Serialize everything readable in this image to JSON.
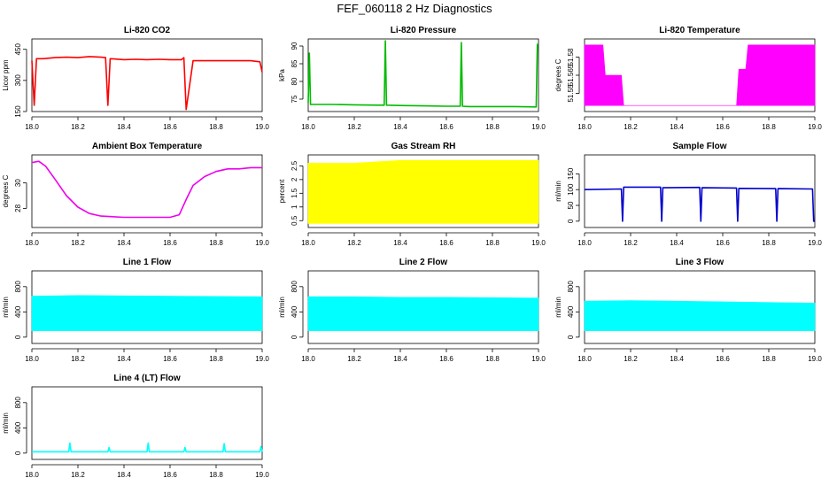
{
  "title": "FEF_060118  2 Hz Diagnostics",
  "chart_data": [
    {
      "type": "line",
      "title": "Li-820 CO2",
      "ylabel": "Licor ppm",
      "color": "#ff0000",
      "xlim": [
        18.0,
        19.0
      ],
      "ylim": [
        150,
        500
      ],
      "xticks": [
        18.0,
        18.2,
        18.4,
        18.6,
        18.8,
        19.0
      ],
      "yticks": [
        150,
        300,
        450
      ],
      "series": [
        {
          "x": [
            18.0,
            18.01,
            18.02,
            18.05,
            18.1,
            18.15,
            18.2,
            18.25,
            18.3,
            18.32,
            18.33,
            18.34,
            18.4,
            18.45,
            18.5,
            18.55,
            18.6,
            18.65,
            18.66,
            18.67,
            18.7,
            18.75,
            18.8,
            18.85,
            18.9,
            18.95,
            18.99,
            19.0
          ],
          "y": [
            395,
            180,
            405,
            405,
            410,
            412,
            410,
            415,
            412,
            410,
            180,
            405,
            400,
            402,
            400,
            402,
            400,
            400,
            410,
            160,
            395,
            395,
            395,
            395,
            395,
            395,
            390,
            340
          ]
        }
      ]
    },
    {
      "type": "line",
      "title": "Li-820 Pressure",
      "ylabel": "kPa",
      "color": "#00bb00",
      "xlim": [
        18.0,
        19.0
      ],
      "ylim": [
        71.5,
        92
      ],
      "xticks": [
        18.0,
        18.2,
        18.4,
        18.6,
        18.8,
        19.0
      ],
      "yticks": [
        75,
        80,
        85,
        90
      ],
      "series": [
        {
          "x": [
            18.0,
            18.005,
            18.01,
            18.1,
            18.2,
            18.3,
            18.33,
            18.335,
            18.34,
            18.4,
            18.5,
            18.6,
            18.66,
            18.665,
            18.67,
            18.7,
            18.8,
            18.9,
            18.99,
            18.995,
            19.0
          ],
          "y": [
            74,
            88,
            73.5,
            73.5,
            73.4,
            73.3,
            73.3,
            91.5,
            73.3,
            73.2,
            73.1,
            73,
            73,
            91,
            73,
            72.9,
            72.9,
            72.9,
            72.8,
            90.5,
            90.5
          ]
        }
      ]
    },
    {
      "type": "area",
      "title": "Li-820 Temperature",
      "ylabel": "degrees C",
      "color": "#ff00ff",
      "xlim": [
        18.0,
        19.0
      ],
      "ylim": [
        51.535,
        51.595
      ],
      "xticks": [
        18.0,
        18.2,
        18.4,
        18.6,
        18.8,
        19.0
      ],
      "yticks": [
        51.55,
        51.565,
        51.58
      ],
      "series": [
        {
          "x": [
            18.0,
            18.08,
            18.09,
            18.16,
            18.17,
            18.66,
            18.67,
            18.7,
            18.71,
            19.0
          ],
          "low": [
            51.54,
            51.54,
            51.54,
            51.54,
            51.54,
            51.54,
            51.54,
            51.54,
            51.54,
            51.54
          ],
          "high": [
            51.59,
            51.59,
            51.565,
            51.565,
            51.54,
            51.54,
            51.57,
            51.57,
            51.59,
            51.59
          ]
        }
      ]
    },
    {
      "type": "line",
      "title": "Ambient Box Temperature",
      "ylabel": "degrees C",
      "color": "#ee00ee",
      "xlim": [
        18.0,
        19.0
      ],
      "ylim": [
        26.5,
        32.2
      ],
      "xticks": [
        18.0,
        18.2,
        18.4,
        18.6,
        18.8,
        19.0
      ],
      "yticks": [
        28,
        30
      ],
      "series": [
        {
          "x": [
            18.0,
            18.03,
            18.06,
            18.1,
            18.15,
            18.2,
            18.25,
            18.3,
            18.4,
            18.5,
            18.6,
            18.64,
            18.67,
            18.7,
            18.75,
            18.8,
            18.85,
            18.9,
            18.95,
            19.0
          ],
          "y": [
            31.6,
            31.7,
            31.3,
            30.3,
            29.0,
            28.1,
            27.6,
            27.4,
            27.3,
            27.3,
            27.3,
            27.5,
            28.7,
            29.8,
            30.5,
            30.9,
            31.1,
            31.1,
            31.2,
            31.2
          ]
        }
      ]
    },
    {
      "type": "area",
      "title": "Gas Stream RH",
      "ylabel": "percent",
      "color": "#ffff00",
      "xlim": [
        18.0,
        19.0
      ],
      "ylim": [
        0.25,
        2.9
      ],
      "xticks": [
        18.0,
        18.2,
        18.4,
        18.6,
        18.8,
        19.0
      ],
      "yticks": [
        0.5,
        1.0,
        1.5,
        2.0,
        2.5
      ],
      "series": [
        {
          "x": [
            18.0,
            18.2,
            18.4,
            18.6,
            18.8,
            19.0
          ],
          "low": [
            0.4,
            0.4,
            0.4,
            0.4,
            0.4,
            0.4
          ],
          "high": [
            2.6,
            2.6,
            2.7,
            2.7,
            2.7,
            2.7
          ]
        }
      ]
    },
    {
      "type": "line",
      "title": "Sample Flow",
      "ylabel": "ml/min",
      "color": "#0000cc",
      "xlim": [
        18.0,
        19.0
      ],
      "ylim": [
        -20,
        210
      ],
      "xticks": [
        18.0,
        18.2,
        18.4,
        18.6,
        18.8,
        19.0
      ],
      "yticks": [
        0,
        50,
        100,
        150
      ],
      "series": [
        {
          "x": [
            18.0,
            18.16,
            18.165,
            18.17,
            18.33,
            18.335,
            18.34,
            18.5,
            18.505,
            18.51,
            18.66,
            18.665,
            18.67,
            18.83,
            18.835,
            18.84,
            18.99,
            18.995,
            19.0
          ],
          "y": [
            100,
            102,
            0,
            108,
            108,
            0,
            106,
            107,
            0,
            106,
            105,
            0,
            104,
            103,
            0,
            103,
            102,
            0,
            0
          ]
        }
      ]
    },
    {
      "type": "area",
      "title": "Line 1 Flow",
      "ylabel": "ml/min",
      "color": "#00ffff",
      "xlim": [
        18.0,
        19.0
      ],
      "ylim": [
        -100,
        1050
      ],
      "xticks": [
        18.0,
        18.2,
        18.4,
        18.6,
        18.8,
        19.0
      ],
      "yticks": [
        0,
        400,
        800
      ],
      "series": [
        {
          "x": [
            18.0,
            18.2,
            18.4,
            18.6,
            18.8,
            19.0
          ],
          "low": [
            100,
            100,
            100,
            100,
            100,
            100
          ],
          "high": [
            650,
            660,
            655,
            650,
            645,
            640
          ]
        }
      ]
    },
    {
      "type": "area",
      "title": "Line 2 Flow",
      "ylabel": "ml/min",
      "color": "#00ffff",
      "xlim": [
        18.0,
        19.0
      ],
      "ylim": [
        -100,
        1050
      ],
      "xticks": [
        18.0,
        18.2,
        18.4,
        18.6,
        18.8,
        19.0
      ],
      "yticks": [
        0,
        400,
        800
      ],
      "series": [
        {
          "x": [
            18.0,
            18.2,
            18.4,
            18.6,
            18.8,
            19.0
          ],
          "low": [
            100,
            100,
            100,
            100,
            100,
            100
          ],
          "high": [
            640,
            640,
            630,
            630,
            625,
            620
          ]
        }
      ]
    },
    {
      "type": "area",
      "title": "Line 3 Flow",
      "ylabel": "ml/min",
      "color": "#00ffff",
      "xlim": [
        18.0,
        19.0
      ],
      "ylim": [
        -100,
        1050
      ],
      "xticks": [
        18.0,
        18.2,
        18.4,
        18.6,
        18.8,
        19.0
      ],
      "yticks": [
        0,
        400,
        800
      ],
      "series": [
        {
          "x": [
            18.0,
            18.2,
            18.4,
            18.6,
            18.8,
            19.0
          ],
          "low": [
            100,
            100,
            100,
            100,
            100,
            100
          ],
          "high": [
            570,
            580,
            570,
            560,
            550,
            540
          ]
        }
      ]
    },
    {
      "type": "line",
      "title": "Line 4 (LT) Flow",
      "ylabel": "ml/min",
      "color": "#00ffff",
      "xlim": [
        18.0,
        19.0
      ],
      "ylim": [
        -100,
        1050
      ],
      "xticks": [
        18.0,
        18.2,
        18.4,
        18.6,
        18.8,
        19.0
      ],
      "yticks": [
        0,
        400,
        800
      ],
      "series": [
        {
          "x": [
            18.0,
            18.16,
            18.165,
            18.17,
            18.33,
            18.335,
            18.34,
            18.5,
            18.505,
            18.51,
            18.66,
            18.665,
            18.67,
            18.83,
            18.835,
            18.84,
            18.99,
            18.995,
            19.0
          ],
          "y": [
            20,
            20,
            160,
            20,
            20,
            90,
            20,
            20,
            160,
            20,
            20,
            90,
            20,
            20,
            150,
            20,
            20,
            100,
            20
          ]
        }
      ]
    }
  ]
}
